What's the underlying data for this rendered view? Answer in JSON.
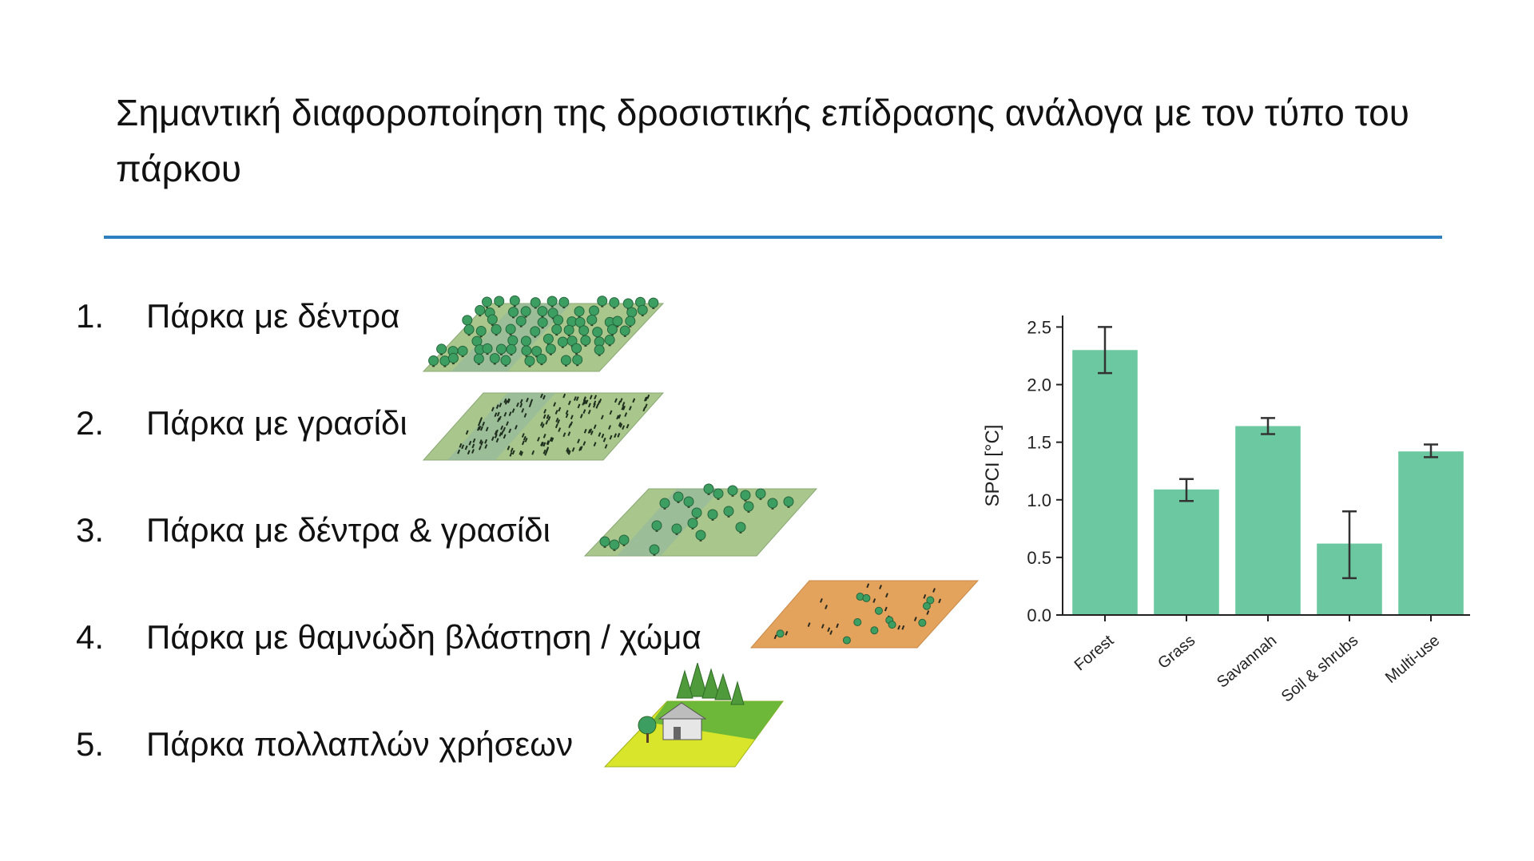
{
  "title": "Σημαντική διαφοροποίηση της δροσιστικής επίδρασης ανάλογα με τον τύπο του πάρκου",
  "items": [
    {
      "number": "1.",
      "label": "Πάρκα με δέντρα",
      "icon": "forest-park-icon"
    },
    {
      "number": "2.",
      "label": "Πάρκα με γρασίδι",
      "icon": "grass-park-icon"
    },
    {
      "number": "3.",
      "label": "Πάρκα με δέντρα & γρασίδι",
      "icon": "savannah-park-icon"
    },
    {
      "number": "4.",
      "label": "Πάρκα με θαμνώδη βλάστηση / χώμα",
      "icon": "shrub-soil-park-icon"
    },
    {
      "number": "5.",
      "label": "Πάρκα πολλαπλών χρήσεων",
      "icon": "multi-use-park-icon"
    }
  ],
  "colors": {
    "accent_rule": "#2e7fbe",
    "bar": "#6cc8a0",
    "tree": "#3d9e62",
    "soil": "#e3a35d",
    "grass_tile": "#a9c78c"
  },
  "chart_data": {
    "type": "bar",
    "categories": [
      "Forest",
      "Grass",
      "Savannah",
      "Soil & shrubs",
      "Multi-use"
    ],
    "values": [
      2.3,
      1.09,
      1.64,
      0.62,
      1.42
    ],
    "error_low": [
      2.1,
      0.99,
      1.57,
      0.32,
      1.37
    ],
    "error_high": [
      2.5,
      1.18,
      1.71,
      0.9,
      1.48
    ],
    "ylabel": "SPCI [°C]",
    "xlabel": "",
    "ylim": [
      0,
      2.6
    ],
    "yticks": [
      "0.0",
      "0.5",
      "1.0",
      "1.5",
      "2.0",
      "2.5"
    ],
    "grid": false
  }
}
